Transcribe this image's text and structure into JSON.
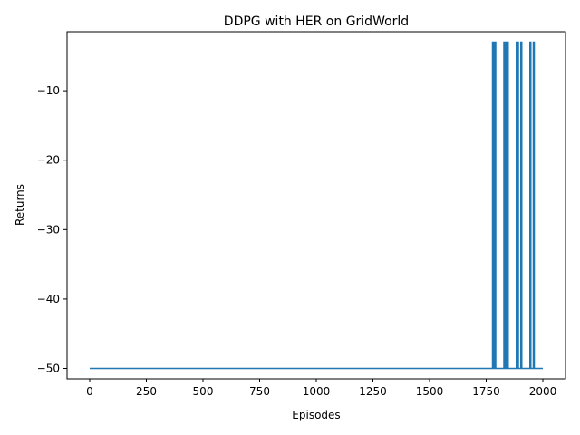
{
  "chart_data": {
    "type": "line",
    "title": "DDPG with HER on GridWorld",
    "xlabel": "Episodes",
    "ylabel": "Returns",
    "xlim": [
      -100,
      2100
    ],
    "ylim": [
      -51.5,
      -1.5
    ],
    "xticks": [
      0,
      250,
      500,
      750,
      1000,
      1250,
      1500,
      1750,
      2000
    ],
    "yticks": [
      -50,
      -40,
      -30,
      -20,
      -10
    ],
    "grid": false,
    "baseline": -50,
    "spike_value": -3,
    "spike_episodes": [
      1780,
      1790,
      1830,
      1835,
      1845,
      1885,
      1890,
      1905,
      1945,
      1960
    ],
    "x_range": [
      0,
      2000
    ],
    "color": "#1f77b4"
  }
}
